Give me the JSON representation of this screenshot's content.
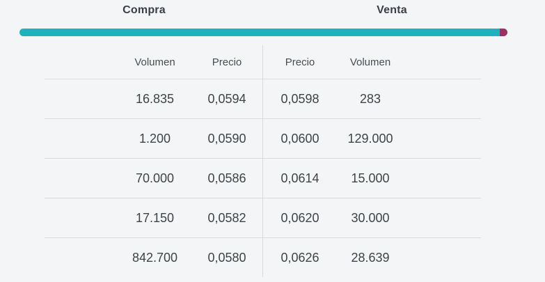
{
  "order_book": {
    "title_buy": "Compra",
    "title_sell": "Venta",
    "depth_bar": {
      "buy_percent": 98.4,
      "sell_percent": 1.6,
      "buy_color": "#22b1bc",
      "sell_color": "#9e2f62"
    },
    "headers": {
      "buy_volume": "Volumen",
      "buy_price": "Precio",
      "sell_price": "Precio",
      "sell_volume": "Volumen"
    },
    "rows": [
      {
        "buy_volume": "16.835",
        "buy_price": "0,0594",
        "sell_price": "0,0598",
        "sell_volume": "283"
      },
      {
        "buy_volume": "1.200",
        "buy_price": "0,0590",
        "sell_price": "0,0600",
        "sell_volume": "129.000"
      },
      {
        "buy_volume": "70.000",
        "buy_price": "0,0586",
        "sell_price": "0,0614",
        "sell_volume": "15.000"
      },
      {
        "buy_volume": "17.150",
        "buy_price": "0,0582",
        "sell_price": "0,0620",
        "sell_volume": "30.000"
      },
      {
        "buy_volume": "842.700",
        "buy_price": "0,0580",
        "sell_price": "0,0626",
        "sell_volume": "28.639"
      }
    ]
  }
}
